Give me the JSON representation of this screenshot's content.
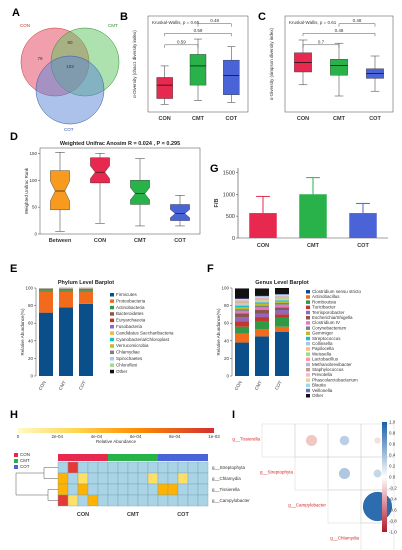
{
  "panels": {
    "A": {
      "label": "A",
      "type": "venn",
      "sets": [
        {
          "name": "CON",
          "color": "#e8506a"
        },
        {
          "name": "CMT",
          "color": "#5cc35c"
        },
        {
          "name": "COT",
          "color": "#5a86d8"
        }
      ],
      "regions": {
        "con_only": "79",
        "cmt_only": "",
        "cot_only": "",
        "con_cmt": "60",
        "con_cot": "",
        "cmt_cot": "",
        "all": "103"
      }
    },
    "B": {
      "label": "B",
      "type": "box",
      "stat": "Kruskal-Wallis, p = 0.65",
      "ylabel": "α-Diversity (chao1 diversity index)",
      "groups": [
        "CON",
        "CMT",
        "COT"
      ],
      "colors": [
        "#e8294f",
        "#29b24a",
        "#4a63d6"
      ],
      "comparisons": [
        {
          "pair": [
            0,
            1
          ],
          "p": "0.59"
        },
        {
          "pair": [
            0,
            2
          ],
          "p": "0.59"
        },
        {
          "pair": [
            1,
            2
          ],
          "p": "0.48"
        }
      ],
      "boxes": [
        {
          "min": 190,
          "q1": 205,
          "median": 240,
          "q3": 260,
          "max": 290
        },
        {
          "min": 200,
          "q1": 240,
          "median": 290,
          "q3": 320,
          "max": 360
        },
        {
          "min": 195,
          "q1": 215,
          "median": 265,
          "q3": 305,
          "max": 340
        }
      ],
      "ylim": [
        170,
        420
      ]
    },
    "C": {
      "label": "C",
      "type": "box",
      "stat": "Kruskal-Wallis, p = 0.61",
      "ylabel": "α-Diversity (simpson diversity index)",
      "groups": [
        "CON",
        "CMT",
        "COT"
      ],
      "colors": [
        "#e8294f",
        "#29b24a",
        "#4a63d6"
      ],
      "comparisons": [
        {
          "pair": [
            0,
            1
          ],
          "p": "0.7"
        },
        {
          "pair": [
            0,
            2
          ],
          "p": "0.48"
        },
        {
          "pair": [
            1,
            2
          ],
          "p": "0.48"
        }
      ],
      "boxes": [
        {
          "min": 0.62,
          "q1": 0.7,
          "median": 0.76,
          "q3": 0.82,
          "max": 0.9
        },
        {
          "min": 0.55,
          "q1": 0.68,
          "median": 0.74,
          "q3": 0.78,
          "max": 0.88
        },
        {
          "min": 0.58,
          "q1": 0.66,
          "median": 0.69,
          "q3": 0.72,
          "max": 0.8
        }
      ],
      "ylim": [
        0.45,
        1.05
      ]
    },
    "D": {
      "label": "D",
      "type": "box",
      "title": "Weighted Unifrac Anosim R = 0.024 , P = 0.295",
      "ylabel": "Weighted Unifrac Rank",
      "groups": [
        "Between",
        "CON",
        "CMT",
        "COT"
      ],
      "colors": [
        "#f79a1e",
        "#e8294f",
        "#29b24a",
        "#4a63d6"
      ],
      "boxes": [
        {
          "min": 5,
          "q1": 45,
          "median": 80,
          "q3": 118,
          "max": 152
        },
        {
          "min": 20,
          "q1": 95,
          "median": 115,
          "q3": 142,
          "max": 150
        },
        {
          "min": 15,
          "q1": 55,
          "median": 75,
          "q3": 100,
          "max": 140
        },
        {
          "min": 15,
          "q1": 25,
          "median": 38,
          "q3": 55,
          "max": 72
        }
      ],
      "yticks": [
        "0",
        "50",
        "100",
        "150"
      ],
      "ylim": [
        0,
        160
      ]
    },
    "G": {
      "label": "G",
      "type": "bar",
      "ylabel": "F/B",
      "categories": [
        "CON",
        "CMT",
        "COT"
      ],
      "values": [
        570,
        1000,
        570
      ],
      "errors": [
        380,
        380,
        220
      ],
      "colors": [
        "#e8294f",
        "#29b24a",
        "#4a63d6"
      ],
      "yticks": [
        "0",
        "500",
        "1000",
        "1500"
      ],
      "ylim": [
        0,
        1600
      ]
    },
    "E": {
      "label": "E",
      "type": "stacked_bar",
      "title": "Phylum Level Barplot",
      "ylabel": "Relative Abundance(%)",
      "categories": [
        "CON",
        "CMT",
        "COT"
      ],
      "yticks": [
        "0",
        "20",
        "40",
        "60",
        "80",
        "100"
      ],
      "legend": [
        "Firmicutes",
        "Proteobacteria",
        "Actinobacteria",
        "Bacteroidetes",
        "Euryarchaeota",
        "Fusobacteria",
        "Candidatus Saccharibacteria",
        "Cyanobacteria/Chloroplast",
        "Verrucomicrobia",
        "Chlamydiae",
        "Spirochaetes",
        "Chloroflexi",
        "Other"
      ],
      "colors": [
        "#0b4f8a",
        "#f26b1d",
        "#2e9a45",
        "#8c564b",
        "#d62728",
        "#9467bd",
        "#e7ba52",
        "#17becf",
        "#bcbd22",
        "#7f7f7f",
        "#aec7e8",
        "#98df8a",
        "#111111"
      ],
      "series_values": [
        [
          72,
          78,
          82
        ],
        [
          24,
          18,
          14
        ],
        [
          1.5,
          1.5,
          1.5
        ],
        [
          1,
          1,
          1
        ],
        [
          0.5,
          0.5,
          0.5
        ],
        [
          0.3,
          0.3,
          0.3
        ],
        [
          0.3,
          0.3,
          0.3
        ],
        [
          0.1,
          0.1,
          0.1
        ],
        [
          0.1,
          0.1,
          0.1
        ],
        [
          0.05,
          0.05,
          0.05
        ],
        [
          0.05,
          0.05,
          0.05
        ],
        [
          0.05,
          0.05,
          0.05
        ],
        [
          0.05,
          0.2,
          0.2
        ]
      ]
    },
    "F": {
      "label": "F",
      "type": "stacked_bar",
      "title": "Genus Level Barplot",
      "ylabel": "Relative Abundance(%)",
      "categories": [
        "CON",
        "CMT",
        "COT"
      ],
      "yticks": [
        "0",
        "20",
        "40",
        "60",
        "80",
        "100"
      ],
      "legend": [
        "Clostridium sensu stricto",
        "Actinobacillus",
        "Romboutsia",
        "Turicibacter",
        "Terrisporobacter",
        "Escherichia/Shigella",
        "Clostridium IV",
        "Corynebacterium",
        "Gemmiger",
        "Streptococcus",
        "Collinsella",
        "Papilocella",
        "Weissella",
        "Lactobacillus",
        "Methanobrevibacter",
        "Staphylococcus",
        "Prevotella",
        "Phascolarctobacterium",
        "Blautia",
        "Veillonella",
        "Other"
      ],
      "colors": [
        "#0b4f8a",
        "#f26b1d",
        "#2e9a45",
        "#c0392b",
        "#9467bd",
        "#8c564b",
        "#e377c2",
        "#7f7f7f",
        "#bcbd22",
        "#17becf",
        "#aec7e8",
        "#ffbb78",
        "#98df8a",
        "#ff9896",
        "#c5b0d5",
        "#c49c94",
        "#f7b6d2",
        "#dbdb8d",
        "#9edae5",
        "#6b6ecf",
        "#111111"
      ],
      "series_values": [
        [
          38,
          45,
          50
        ],
        [
          10,
          8,
          6
        ],
        [
          8,
          9,
          10
        ],
        [
          6,
          5,
          4
        ],
        [
          5,
          4,
          5
        ],
        [
          4,
          4,
          3
        ],
        [
          3,
          3,
          3
        ],
        [
          2,
          2,
          2
        ],
        [
          2,
          2,
          1.5
        ],
        [
          2,
          1.5,
          1.5
        ],
        [
          1.5,
          1.5,
          1
        ],
        [
          1,
          1,
          1
        ],
        [
          1,
          1,
          1
        ],
        [
          1,
          1,
          1
        ],
        [
          1,
          0.5,
          0.5
        ],
        [
          0.5,
          0.5,
          0.5
        ],
        [
          0.5,
          0.5,
          0.5
        ],
        [
          0.5,
          0.5,
          0.5
        ],
        [
          0.5,
          0.5,
          0.5
        ],
        [
          0.5,
          0.5,
          0.5
        ],
        [
          11.5,
          8.5,
          7
        ]
      ]
    },
    "H": {
      "label": "H",
      "type": "heatmap",
      "scale_labels": [
        "0",
        "2e-04",
        "4e-04",
        "6e-04",
        "8e-04",
        "1e-03"
      ],
      "scale_caption": "Relative Abundance",
      "legend_groups": [
        {
          "name": "CON",
          "color": "#e8294f"
        },
        {
          "name": "CMT",
          "color": "#29b24a"
        },
        {
          "name": "COT",
          "color": "#4a63d6"
        }
      ],
      "columns": [
        "CON",
        "CMT",
        "COT"
      ],
      "rows": [
        "g__Streptophyta",
        "g__Chlamydia",
        "g__Tissierella",
        "g__Campylobacter"
      ],
      "values": [
        [
          0.0,
          0.9,
          0.0,
          0.0,
          0.0,
          0.0,
          0.0,
          0.0,
          0.0,
          0.0,
          0.0,
          0.0,
          0.0,
          0.0,
          0.0
        ],
        [
          0.6,
          0.0,
          0.4,
          0.0,
          0.0,
          0.0,
          0.0,
          0.0,
          0.0,
          0.3,
          0.0,
          0.0,
          0.2,
          0.0,
          0.0
        ],
        [
          0.5,
          0.0,
          0.7,
          0.0,
          0.0,
          0.0,
          0.0,
          0.0,
          0.0,
          0.0,
          0.6,
          0.5,
          0.0,
          0.0,
          0.0
        ],
        [
          0.9,
          0.4,
          0.0,
          0.6,
          0.0,
          0.0,
          0.0,
          0.0,
          0.0,
          0.0,
          0.0,
          0.0,
          0.0,
          0.0,
          0.0
        ]
      ],
      "column_groups": [
        0,
        0,
        0,
        0,
        0,
        1,
        1,
        1,
        1,
        1,
        2,
        2,
        2,
        2,
        2
      ]
    },
    "I": {
      "label": "I",
      "type": "correlation",
      "labels": [
        "g__Tissierella",
        "g__Streptophyta",
        "g__Campylobacter",
        "g__Chlamydia"
      ],
      "scale_labels": [
        "1.0",
        "0.8",
        "0.6",
        "0.4",
        "0.2",
        "0.0",
        "-0.2",
        "-0.4",
        "-0.6",
        "-0.8",
        "-1.0"
      ],
      "cells": [
        {
          "row": 0,
          "col": 1,
          "r": -0.35
        },
        {
          "row": 0,
          "col": 2,
          "r": 0.3
        },
        {
          "row": 0,
          "col": 3,
          "r": -0.2
        },
        {
          "row": 1,
          "col": 2,
          "r": 0.35
        },
        {
          "row": 1,
          "col": 3,
          "r": 0.25
        },
        {
          "row": 2,
          "col": 3,
          "r": 0.92
        }
      ]
    }
  }
}
